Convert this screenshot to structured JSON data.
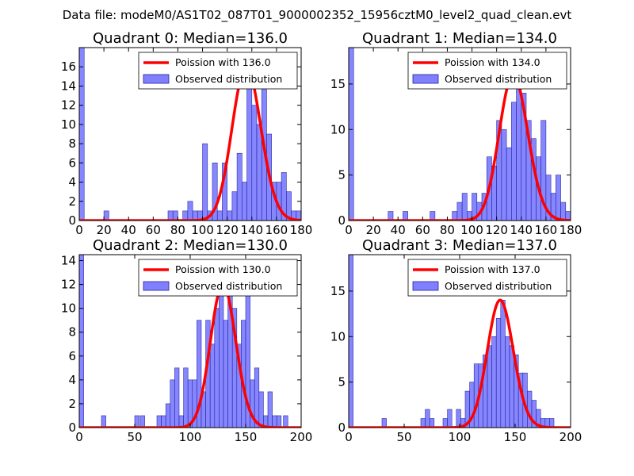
{
  "figure_title": "Data file: modeM0/AS1T02_087T01_9000002352_15956cztM0_level2_quad_clean.evt",
  "colors": {
    "bar_fill": "#8080ff",
    "bar_edge": "#2020a0",
    "poisson_line": "#ff0000",
    "axes": "#000000"
  },
  "chart_data": [
    {
      "type": "bar",
      "title": "Quadrant 0: Median=136.0",
      "xlim": [
        0,
        180
      ],
      "ylim": [
        0,
        18
      ],
      "xticks": [
        0,
        20,
        40,
        60,
        80,
        100,
        120,
        140,
        160,
        180
      ],
      "yticks": [
        0,
        2,
        4,
        6,
        8,
        10,
        12,
        14,
        16
      ],
      "legend": {
        "position": "top-right",
        "line_label": "Poission with 136.0",
        "bar_label": "Observed distribution"
      },
      "poisson_mean": 136.0,
      "bins": [
        {
          "x": 0,
          "count": 18
        },
        {
          "x": 20,
          "count": 1
        },
        {
          "x": 72,
          "count": 1
        },
        {
          "x": 76,
          "count": 1
        },
        {
          "x": 84,
          "count": 1
        },
        {
          "x": 88,
          "count": 2
        },
        {
          "x": 92,
          "count": 1
        },
        {
          "x": 96,
          "count": 1
        },
        {
          "x": 100,
          "count": 8
        },
        {
          "x": 104,
          "count": 1
        },
        {
          "x": 108,
          "count": 6
        },
        {
          "x": 112,
          "count": 1
        },
        {
          "x": 116,
          "count": 6
        },
        {
          "x": 120,
          "count": 1
        },
        {
          "x": 124,
          "count": 3
        },
        {
          "x": 128,
          "count": 7
        },
        {
          "x": 132,
          "count": 4
        },
        {
          "x": 136,
          "count": 15
        },
        {
          "x": 140,
          "count": 12
        },
        {
          "x": 144,
          "count": 10
        },
        {
          "x": 148,
          "count": 16
        },
        {
          "x": 152,
          "count": 9
        },
        {
          "x": 156,
          "count": 4
        },
        {
          "x": 160,
          "count": 4
        },
        {
          "x": 164,
          "count": 5
        },
        {
          "x": 168,
          "count": 3
        },
        {
          "x": 172,
          "count": 1
        },
        {
          "x": 176,
          "count": 1
        }
      ]
    },
    {
      "type": "bar",
      "title": "Quadrant 1: Median=134.0",
      "xlim": [
        0,
        180
      ],
      "ylim": [
        0,
        19
      ],
      "xticks": [
        0,
        20,
        40,
        60,
        80,
        100,
        120,
        140,
        160,
        180
      ],
      "yticks": [
        0,
        5,
        10,
        15
      ],
      "legend": {
        "position": "top-right",
        "line_label": "Poission with 134.0",
        "bar_label": "Observed distribution"
      },
      "poisson_mean": 134.0,
      "bins": [
        {
          "x": 0,
          "count": 19
        },
        {
          "x": 32,
          "count": 1
        },
        {
          "x": 44,
          "count": 1
        },
        {
          "x": 66,
          "count": 1
        },
        {
          "x": 84,
          "count": 1
        },
        {
          "x": 88,
          "count": 2
        },
        {
          "x": 92,
          "count": 3
        },
        {
          "x": 96,
          "count": 1
        },
        {
          "x": 100,
          "count": 3
        },
        {
          "x": 104,
          "count": 2
        },
        {
          "x": 108,
          "count": 3
        },
        {
          "x": 112,
          "count": 7
        },
        {
          "x": 116,
          "count": 6
        },
        {
          "x": 120,
          "count": 11
        },
        {
          "x": 124,
          "count": 10
        },
        {
          "x": 128,
          "count": 8
        },
        {
          "x": 132,
          "count": 13
        },
        {
          "x": 136,
          "count": 16
        },
        {
          "x": 140,
          "count": 14
        },
        {
          "x": 144,
          "count": 11
        },
        {
          "x": 148,
          "count": 9
        },
        {
          "x": 152,
          "count": 7
        },
        {
          "x": 156,
          "count": 11
        },
        {
          "x": 160,
          "count": 5
        },
        {
          "x": 164,
          "count": 3
        },
        {
          "x": 168,
          "count": 5
        },
        {
          "x": 172,
          "count": 2
        },
        {
          "x": 176,
          "count": 1
        }
      ]
    },
    {
      "type": "bar",
      "title": "Quadrant 2: Median=130.0",
      "xlim": [
        0,
        200
      ],
      "ylim": [
        0,
        14.5
      ],
      "xticks": [
        0,
        50,
        100,
        150,
        200
      ],
      "yticks": [
        0,
        2,
        4,
        6,
        8,
        10,
        12,
        14
      ],
      "legend": {
        "position": "top-right",
        "line_label": "Poission with 130.0",
        "bar_label": "Observed distribution"
      },
      "poisson_mean": 130.0,
      "bins": [
        {
          "x": 0,
          "count": 14.5
        },
        {
          "x": 20,
          "count": 1
        },
        {
          "x": 50,
          "count": 1
        },
        {
          "x": 55,
          "count": 1
        },
        {
          "x": 70,
          "count": 1
        },
        {
          "x": 74,
          "count": 1
        },
        {
          "x": 78,
          "count": 2
        },
        {
          "x": 82,
          "count": 4
        },
        {
          "x": 86,
          "count": 5
        },
        {
          "x": 90,
          "count": 1
        },
        {
          "x": 94,
          "count": 5
        },
        {
          "x": 98,
          "count": 4
        },
        {
          "x": 102,
          "count": 4
        },
        {
          "x": 106,
          "count": 9
        },
        {
          "x": 110,
          "count": 3
        },
        {
          "x": 114,
          "count": 9
        },
        {
          "x": 118,
          "count": 7
        },
        {
          "x": 122,
          "count": 10
        },
        {
          "x": 126,
          "count": 12
        },
        {
          "x": 130,
          "count": 9
        },
        {
          "x": 134,
          "count": 12
        },
        {
          "x": 138,
          "count": 10
        },
        {
          "x": 142,
          "count": 7
        },
        {
          "x": 146,
          "count": 9
        },
        {
          "x": 150,
          "count": 12
        },
        {
          "x": 154,
          "count": 4
        },
        {
          "x": 158,
          "count": 5
        },
        {
          "x": 162,
          "count": 3
        },
        {
          "x": 166,
          "count": 1
        },
        {
          "x": 170,
          "count": 3
        },
        {
          "x": 174,
          "count": 1
        },
        {
          "x": 178,
          "count": 1
        },
        {
          "x": 184,
          "count": 1
        }
      ]
    },
    {
      "type": "bar",
      "title": "Quadrant 3: Median=137.0",
      "xlim": [
        0,
        200
      ],
      "ylim": [
        0,
        19
      ],
      "xticks": [
        0,
        50,
        100,
        150,
        200
      ],
      "yticks": [
        0,
        5,
        10,
        15
      ],
      "legend": {
        "position": "top-right",
        "line_label": "Poission with 137.0",
        "bar_label": "Observed distribution"
      },
      "poisson_mean": 137.0,
      "bins": [
        {
          "x": 0,
          "count": 19
        },
        {
          "x": 30,
          "count": 1
        },
        {
          "x": 65,
          "count": 1
        },
        {
          "x": 69,
          "count": 2
        },
        {
          "x": 73,
          "count": 1
        },
        {
          "x": 85,
          "count": 1
        },
        {
          "x": 89,
          "count": 2
        },
        {
          "x": 97,
          "count": 2
        },
        {
          "x": 101,
          "count": 1
        },
        {
          "x": 105,
          "count": 4
        },
        {
          "x": 109,
          "count": 5
        },
        {
          "x": 113,
          "count": 7
        },
        {
          "x": 117,
          "count": 7
        },
        {
          "x": 121,
          "count": 8
        },
        {
          "x": 125,
          "count": 9
        },
        {
          "x": 129,
          "count": 10
        },
        {
          "x": 133,
          "count": 12
        },
        {
          "x": 137,
          "count": 14
        },
        {
          "x": 141,
          "count": 10
        },
        {
          "x": 145,
          "count": 9
        },
        {
          "x": 149,
          "count": 8
        },
        {
          "x": 153,
          "count": 6
        },
        {
          "x": 157,
          "count": 6
        },
        {
          "x": 161,
          "count": 4
        },
        {
          "x": 165,
          "count": 3
        },
        {
          "x": 169,
          "count": 2
        },
        {
          "x": 173,
          "count": 1
        },
        {
          "x": 177,
          "count": 1
        },
        {
          "x": 181,
          "count": 1
        }
      ]
    }
  ]
}
